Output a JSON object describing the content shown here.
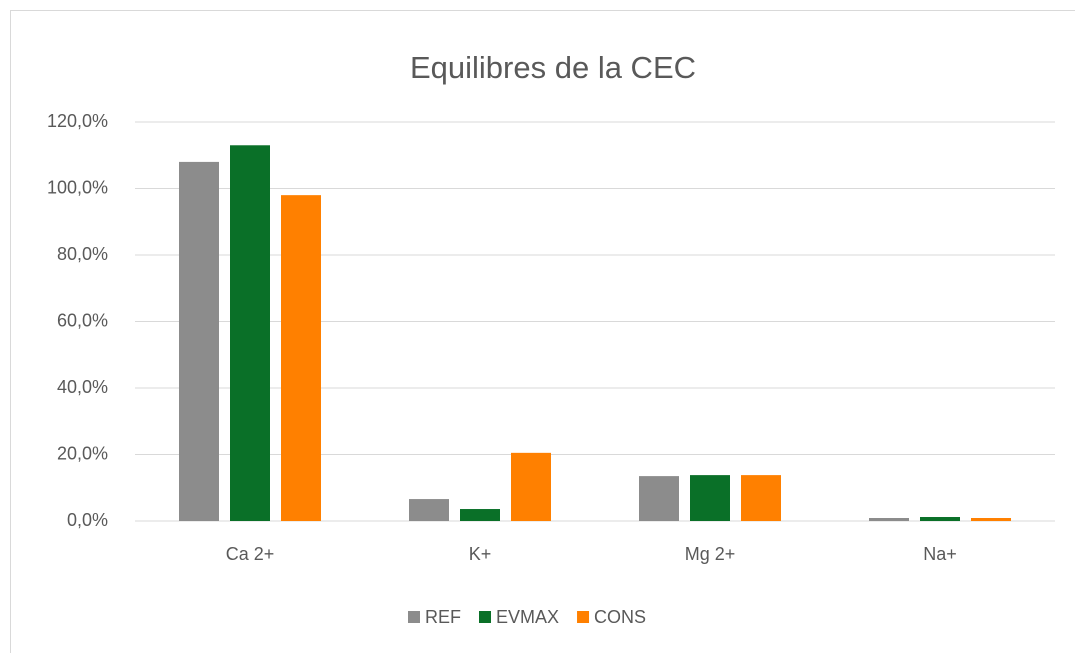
{
  "chart_data": {
    "type": "bar",
    "title": "Equilibres de la CEC",
    "categories": [
      "Ca 2+",
      "K+",
      "Mg 2+",
      "Na+"
    ],
    "series": [
      {
        "name": "REF",
        "color": "#8c8c8c",
        "values": [
          108,
          6.6,
          13.5,
          0.9
        ]
      },
      {
        "name": "EVMAX",
        "color": "#0a7028",
        "values": [
          113,
          3.6,
          13.8,
          1.2
        ]
      },
      {
        "name": "CONS",
        "color": "#ff8000",
        "values": [
          98,
          20.5,
          13.8,
          0.9
        ]
      }
    ],
    "ylim": [
      0,
      120
    ],
    "yticks": [
      {
        "value": 0,
        "label": "0,0%"
      },
      {
        "value": 20,
        "label": "20,0%"
      },
      {
        "value": 40,
        "label": "40,0%"
      },
      {
        "value": 60,
        "label": "60,0%"
      },
      {
        "value": 80,
        "label": "80,0%"
      },
      {
        "value": 100,
        "label": "100,0%"
      },
      {
        "value": 120,
        "label": "120,0%"
      }
    ],
    "grid": true,
    "legend": "bottom"
  }
}
